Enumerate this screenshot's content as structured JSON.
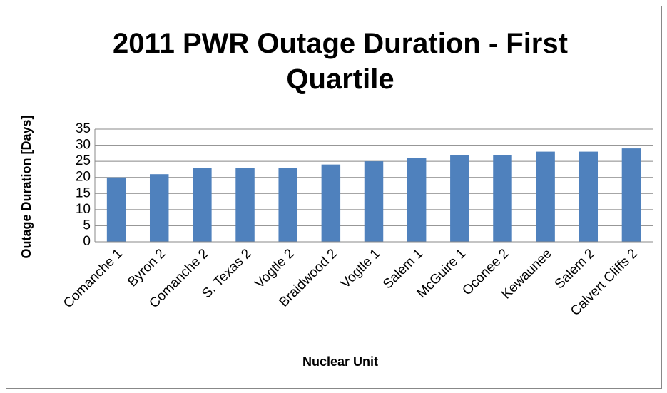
{
  "chart_data": {
    "type": "bar",
    "title": "2011 PWR Outage Duration - First Quartile",
    "x_label": "Nuclear Unit",
    "y_label": "Outage Duration [Days]",
    "categories": [
      "Comanche 1",
      "Byron 2",
      "Comanche 2",
      "S. Texas 2",
      "Vogtle 2",
      "Braidwood 2",
      "Vogtle 1",
      "Salem 1",
      "McGuire 1",
      "Oconee 2",
      "Kewaunee",
      "Salem 2",
      "Calvert Cliffs 2"
    ],
    "values": [
      20,
      21,
      23,
      23,
      23,
      24,
      25,
      26,
      27,
      27,
      28,
      28,
      29
    ],
    "color": "#4f81bd",
    "ylim": [
      0,
      35
    ],
    "yticks": [
      0,
      5,
      10,
      15,
      20,
      25,
      30,
      35
    ],
    "grid": true
  }
}
